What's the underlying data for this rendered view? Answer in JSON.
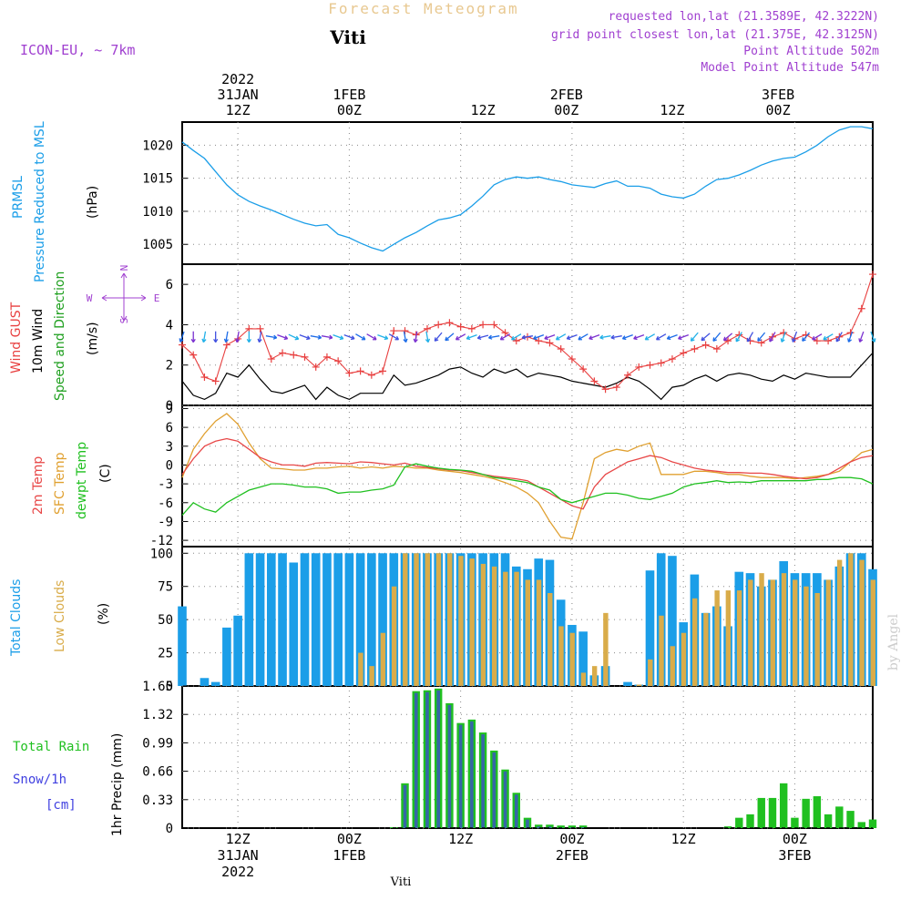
{
  "header": {
    "super_title": "Forecast Meteogram",
    "location": "Viti",
    "model": "ICON-EU, ~ 7km",
    "info": [
      "requested lon,lat (21.3589E, 42.3222N)",
      "grid point closest lon,lat (21.375E, 42.3125N)",
      "Point Altitude 502m",
      "Model Point Altitude 547m"
    ],
    "footer": "Viti",
    "watermark": "by Angel"
  },
  "colors": {
    "pressure": "#1b9ee8",
    "gust": "#e84040",
    "wind": "#000000",
    "wind_dir_accent": "#20a020",
    "t2m": "#e84848",
    "sfc": "#e0a030",
    "dewpt": "#20c020",
    "total_clouds": "#1b9ee8",
    "low_clouds": "#d9ac4a",
    "rain": "#20c020",
    "snow": "#4040e0",
    "info_text": "#a040d0",
    "grid": "#888888"
  },
  "time_axis": {
    "start_hour": 0,
    "end_hour": 62,
    "top_labels": [
      {
        "hour": 5,
        "lines": [
          "2022",
          "31JAN",
          "12Z"
        ]
      },
      {
        "hour": 15,
        "lines": [
          "1FEB",
          "00Z"
        ]
      },
      {
        "hour": 27,
        "lines": [
          "12Z"
        ]
      },
      {
        "hour": 34.5,
        "lines": [
          "2FEB",
          "00Z"
        ]
      },
      {
        "hour": 44,
        "lines": [
          "12Z"
        ]
      },
      {
        "hour": 53.5,
        "lines": [
          "3FEB",
          "00Z"
        ]
      }
    ],
    "bottom_labels": [
      {
        "hour": 5,
        "lines": [
          "12Z",
          "31JAN",
          "2022"
        ]
      },
      {
        "hour": 15,
        "lines": [
          "00Z",
          "1FEB"
        ]
      },
      {
        "hour": 25,
        "lines": [
          "12Z"
        ]
      },
      {
        "hour": 35,
        "lines": [
          "00Z",
          "2FEB"
        ]
      },
      {
        "hour": 45,
        "lines": [
          "12Z"
        ]
      },
      {
        "hour": 55,
        "lines": [
          "00Z",
          "3FEB"
        ]
      }
    ]
  },
  "panels": {
    "pressure": {
      "labels": [
        "PRMSL",
        "Pressure Reduced to MSL",
        "(hPa)"
      ],
      "ticks": [
        "1005",
        "1010",
        "1015",
        "1020"
      ]
    },
    "wind": {
      "labels": [
        "Wind GUST",
        "10m Wind",
        "Speed and Direction",
        "(m/s)"
      ],
      "ticks": [
        "0",
        "2",
        "4",
        "6"
      ],
      "compass": {
        "n": "N",
        "s": "S",
        "w": "W",
        "e": "E"
      }
    },
    "temp": {
      "labels": [
        "2m Temp",
        "SFC Temp",
        "dewpt Temp",
        "(C)"
      ],
      "ticks": [
        "-12",
        "-9",
        "-6",
        "-3",
        "0",
        "3",
        "6",
        "9"
      ]
    },
    "clouds": {
      "labels": [
        "Total Clouds",
        "Low Clouds",
        "(%)"
      ],
      "ticks": [
        "0",
        "25",
        "50",
        "75",
        "100"
      ]
    },
    "precip": {
      "labels": [
        "Total  Rain",
        "Snow/1h",
        "[cm]",
        "1hr Precip (mm)"
      ],
      "ticks": [
        "0",
        "0.33",
        "0.66",
        "0.99",
        "1.32",
        "1.65"
      ]
    }
  },
  "chart_data": [
    {
      "type": "line",
      "name": "pressure",
      "ylim": [
        1002,
        1023.5
      ],
      "x": [
        0,
        1,
        2,
        3,
        4,
        5,
        6,
        7,
        8,
        9,
        10,
        11,
        12,
        13,
        14,
        15,
        16,
        17,
        18,
        19,
        20,
        21,
        22,
        23,
        24,
        25,
        26,
        27,
        28,
        29,
        30,
        31,
        32,
        33,
        34,
        35,
        36,
        37,
        38,
        39,
        40,
        41,
        42,
        43,
        44,
        45,
        46,
        47,
        48,
        49,
        50,
        51,
        52,
        53,
        54,
        55,
        56,
        57,
        58,
        59,
        60,
        61,
        62
      ],
      "y": [
        1020.5,
        1019.2,
        1018.0,
        1016.0,
        1014.0,
        1012.5,
        1011.5,
        1010.8,
        1010.2,
        1009.5,
        1008.8,
        1008.2,
        1007.8,
        1008.0,
        1006.5,
        1006.0,
        1005.2,
        1004.5,
        1004.0,
        1005.0,
        1006.0,
        1006.8,
        1007.8,
        1008.7,
        1009.0,
        1009.5,
        1010.8,
        1012.3,
        1014.0,
        1014.8,
        1015.2,
        1015.0,
        1015.2,
        1014.8,
        1014.5,
        1014.0,
        1013.8,
        1013.6,
        1014.2,
        1014.6,
        1013.8,
        1013.8,
        1013.5,
        1012.6,
        1012.2,
        1012.0,
        1012.6,
        1013.8,
        1014.8,
        1015.0,
        1015.5,
        1016.2,
        1017.0,
        1017.6,
        1018.0,
        1018.2,
        1019.0,
        1020.0,
        1021.3,
        1022.3,
        1022.8,
        1022.8,
        1022.5
      ]
    },
    {
      "type": "line",
      "name": "wind",
      "ylim": [
        0,
        7
      ],
      "x": [
        0,
        1,
        2,
        3,
        4,
        5,
        6,
        7,
        8,
        9,
        10,
        11,
        12,
        13,
        14,
        15,
        16,
        17,
        18,
        19,
        20,
        21,
        22,
        23,
        24,
        25,
        26,
        27,
        28,
        29,
        30,
        31,
        32,
        33,
        34,
        35,
        36,
        37,
        38,
        39,
        40,
        41,
        42,
        43,
        44,
        45,
        46,
        47,
        48,
        49,
        50,
        51,
        52,
        53,
        54,
        55,
        56,
        57,
        58,
        59,
        60,
        61,
        62
      ],
      "speed": [
        1.2,
        0.5,
        0.3,
        0.6,
        1.6,
        1.4,
        2.0,
        1.3,
        0.7,
        0.6,
        0.8,
        1.0,
        0.3,
        0.9,
        0.5,
        0.3,
        0.6,
        0.6,
        0.6,
        1.5,
        1.0,
        1.1,
        1.3,
        1.5,
        1.8,
        1.9,
        1.6,
        1.4,
        1.8,
        1.6,
        1.8,
        1.4,
        1.6,
        1.5,
        1.4,
        1.2,
        1.1,
        1.0,
        0.9,
        1.1,
        1.4,
        1.2,
        0.8,
        0.3,
        0.9,
        1.0,
        1.3,
        1.5,
        1.2,
        1.5,
        1.6,
        1.5,
        1.3,
        1.2,
        1.5,
        1.3,
        1.6,
        1.5,
        1.4,
        1.4,
        1.4,
        2.0,
        2.6
      ],
      "gust": [
        3.0,
        2.5,
        1.4,
        1.2,
        3.0,
        3.3,
        3.8,
        3.8,
        2.3,
        2.6,
        2.5,
        2.4,
        1.9,
        2.4,
        2.2,
        1.6,
        1.7,
        1.5,
        1.7,
        3.7,
        3.7,
        3.5,
        3.8,
        4.0,
        4.1,
        3.9,
        3.8,
        4.0,
        4.0,
        3.6,
        3.2,
        3.4,
        3.2,
        3.1,
        2.8,
        2.3,
        1.8,
        1.2,
        0.8,
        0.9,
        1.5,
        1.9,
        2.0,
        2.1,
        2.3,
        2.6,
        2.8,
        3.0,
        2.8,
        3.2,
        3.5,
        3.2,
        3.1,
        3.4,
        3.6,
        3.3,
        3.5,
        3.2,
        3.2,
        3.4,
        3.6,
        4.8,
        6.5
      ],
      "dir_deg": [
        200,
        180,
        190,
        180,
        190,
        190,
        180,
        190,
        100,
        110,
        115,
        110,
        100,
        100,
        110,
        110,
        120,
        120,
        110,
        120,
        170,
        190,
        170,
        220,
        230,
        240,
        250,
        255,
        260,
        240,
        240,
        260,
        250,
        250,
        240,
        250,
        240,
        250,
        260,
        260,
        250,
        250,
        240,
        240,
        250,
        250,
        220,
        230,
        220,
        230,
        210,
        210,
        220,
        210,
        200,
        200,
        220,
        240,
        240,
        210,
        200,
        200,
        160
      ]
    },
    {
      "type": "line",
      "name": "temperature",
      "ylim": [
        -13,
        9.5
      ],
      "x": [
        0,
        1,
        2,
        3,
        4,
        5,
        6,
        7,
        8,
        9,
        10,
        11,
        12,
        13,
        14,
        15,
        16,
        17,
        18,
        19,
        20,
        21,
        22,
        23,
        24,
        25,
        26,
        27,
        28,
        29,
        30,
        31,
        32,
        33,
        34,
        35,
        36,
        37,
        38,
        39,
        40,
        41,
        42,
        43,
        44,
        45,
        46,
        47,
        48,
        49,
        50,
        51,
        52,
        53,
        54,
        55,
        56,
        57,
        58,
        59,
        60,
        61,
        62
      ],
      "t2m": [
        -1.5,
        1.0,
        3.0,
        3.8,
        4.2,
        3.8,
        2.5,
        1.2,
        0.5,
        0.0,
        0.0,
        -0.2,
        0.3,
        0.4,
        0.3,
        0.2,
        0.5,
        0.4,
        0.2,
        0.0,
        0.3,
        -0.2,
        -0.4,
        -0.6,
        -0.8,
        -0.9,
        -1.2,
        -1.5,
        -1.8,
        -2.0,
        -2.2,
        -2.5,
        -3.5,
        -4.5,
        -5.5,
        -6.5,
        -7.0,
        -3.5,
        -1.5,
        -0.5,
        0.5,
        1.0,
        1.5,
        1.2,
        0.5,
        0.0,
        -0.5,
        -0.8,
        -1.0,
        -1.2,
        -1.2,
        -1.3,
        -1.3,
        -1.5,
        -1.8,
        -2.0,
        -2.2,
        -2.0,
        -1.5,
        -0.5,
        0.5,
        1.2,
        1.5
      ],
      "sfc": [
        -2.0,
        2.5,
        5.0,
        7.0,
        8.2,
        6.5,
        3.5,
        1.0,
        -0.5,
        -0.6,
        -0.8,
        -0.8,
        -0.5,
        -0.5,
        -0.3,
        -0.2,
        -0.5,
        -0.3,
        -0.5,
        -0.2,
        -0.3,
        -0.5,
        -0.5,
        -0.8,
        -1.0,
        -1.2,
        -1.5,
        -1.8,
        -2.2,
        -2.8,
        -3.5,
        -4.5,
        -6.0,
        -9.0,
        -11.5,
        -11.8,
        -6.0,
        1.0,
        2.0,
        2.5,
        2.2,
        3.0,
        3.5,
        -1.5,
        -1.5,
        -1.5,
        -1.0,
        -1.0,
        -1.2,
        -1.5,
        -1.5,
        -1.8,
        -2.0,
        -2.0,
        -2.0,
        -2.2,
        -2.0,
        -1.8,
        -1.5,
        -1.0,
        0.5,
        2.0,
        2.5
      ],
      "dewpt": [
        -8.0,
        -6.0,
        -7.0,
        -7.5,
        -6.0,
        -5.0,
        -4.0,
        -3.5,
        -3.0,
        -3.0,
        -3.2,
        -3.5,
        -3.5,
        -3.8,
        -4.5,
        -4.3,
        -4.3,
        -4.0,
        -3.8,
        -3.2,
        -0.3,
        0.2,
        -0.2,
        -0.5,
        -0.7,
        -0.8,
        -1.0,
        -1.5,
        -2.0,
        -2.2,
        -2.5,
        -2.8,
        -3.5,
        -4.0,
        -5.5,
        -6.0,
        -5.5,
        -5.0,
        -4.5,
        -4.5,
        -4.8,
        -5.3,
        -5.5,
        -5.0,
        -4.5,
        -3.5,
        -3.0,
        -2.8,
        -2.5,
        -2.8,
        -2.7,
        -2.8,
        -2.5,
        -2.5,
        -2.5,
        -2.5,
        -2.5,
        -2.3,
        -2.3,
        -2.0,
        -2.0,
        -2.2,
        -3.0
      ]
    },
    {
      "type": "bar",
      "name": "clouds",
      "ylim": [
        0,
        105
      ],
      "x": [
        0,
        1,
        2,
        3,
        4,
        5,
        6,
        7,
        8,
        9,
        10,
        11,
        12,
        13,
        14,
        15,
        16,
        17,
        18,
        19,
        20,
        21,
        22,
        23,
        24,
        25,
        26,
        27,
        28,
        29,
        30,
        31,
        32,
        33,
        34,
        35,
        36,
        37,
        38,
        39,
        40,
        41,
        42,
        43,
        44,
        45,
        46,
        47,
        48,
        49,
        50,
        51,
        52,
        53,
        54,
        55,
        56,
        57,
        58,
        59,
        60,
        61,
        62
      ],
      "total": [
        60,
        0,
        6,
        3,
        44,
        53,
        100,
        100,
        100,
        100,
        93,
        100,
        100,
        100,
        100,
        100,
        100,
        100,
        100,
        100,
        100,
        100,
        100,
        100,
        100,
        100,
        100,
        100,
        100,
        100,
        90,
        88,
        96,
        95,
        65,
        46,
        41,
        8,
        15,
        0,
        3,
        1,
        87,
        100,
        98,
        48,
        84,
        55,
        60,
        45,
        86,
        85,
        75,
        80,
        94,
        85,
        85,
        85,
        80,
        90,
        100,
        100,
        88
      ],
      "low": [
        0,
        0,
        0,
        0,
        0,
        0,
        0,
        0,
        0,
        0,
        0,
        0,
        0,
        0,
        0,
        0,
        25,
        15,
        40,
        75,
        100,
        100,
        100,
        100,
        100,
        98,
        96,
        92,
        90,
        86,
        86,
        80,
        80,
        70,
        45,
        40,
        10,
        15,
        55,
        0,
        0,
        1,
        20,
        53,
        30,
        40,
        66,
        55,
        72,
        72,
        72,
        80,
        85,
        80,
        85,
        80,
        75,
        70,
        80,
        95,
        100,
        95,
        80
      ]
    },
    {
      "type": "bar",
      "name": "precip",
      "ylim": [
        0,
        1.65
      ],
      "x": [
        0,
        1,
        2,
        3,
        4,
        5,
        6,
        7,
        8,
        9,
        10,
        11,
        12,
        13,
        14,
        15,
        16,
        17,
        18,
        19,
        20,
        21,
        22,
        23,
        24,
        25,
        26,
        27,
        28,
        29,
        30,
        31,
        32,
        33,
        34,
        35,
        36,
        37,
        38,
        39,
        40,
        41,
        42,
        43,
        44,
        45,
        46,
        47,
        48,
        49,
        50,
        51,
        52,
        53,
        54,
        55,
        56,
        57,
        58,
        59,
        60,
        61,
        62
      ],
      "rain": [
        0,
        0,
        0,
        0,
        0,
        0,
        0,
        0,
        0,
        0,
        0,
        0,
        0,
        0,
        0,
        0,
        0,
        0,
        0,
        0.01,
        0.52,
        1.59,
        1.6,
        1.62,
        1.45,
        1.22,
        1.26,
        1.11,
        0.9,
        0.68,
        0.41,
        0.12,
        0.04,
        0.04,
        0.03,
        0.03,
        0.03,
        0,
        0,
        0,
        0,
        0,
        0,
        0,
        0,
        0,
        0,
        0,
        0,
        0.02,
        0.12,
        0.16,
        0.35,
        0.35,
        0.52,
        0.12,
        0.34,
        0.37,
        0.16,
        0.25,
        0.2,
        0.07,
        0.1
      ]
    }
  ]
}
